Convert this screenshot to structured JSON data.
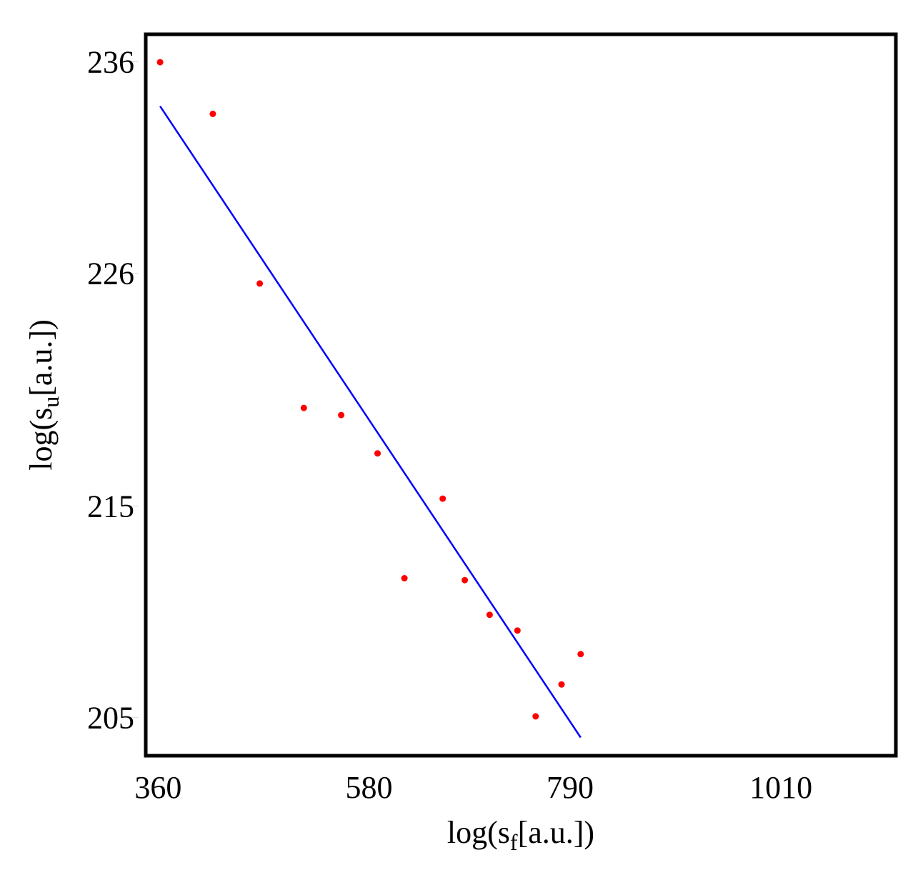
{
  "chart_data": {
    "type": "scatter",
    "xlabel": {
      "prefix": "log(s",
      "sub": "f",
      "suffix": "[a.u.])"
    },
    "ylabel": {
      "prefix": "log(s",
      "sub": "u",
      "suffix": "[a.u.])"
    },
    "xticks": [
      360,
      580,
      790,
      1010
    ],
    "yticks": [
      205,
      215,
      226,
      236
    ],
    "xlim": [
      347,
      1130
    ],
    "ylim": [
      203.2,
      237.3
    ],
    "grid": false,
    "series": [
      {
        "type": "scatter",
        "color": "#ff0000",
        "points": [
          {
            "x": 362,
            "y": 235.98
          },
          {
            "x": 417,
            "y": 233.54
          },
          {
            "x": 466,
            "y": 225.52
          },
          {
            "x": 512,
            "y": 219.64
          },
          {
            "x": 551,
            "y": 219.3
          },
          {
            "x": 589,
            "y": 217.49
          },
          {
            "x": 617,
            "y": 211.59
          },
          {
            "x": 657,
            "y": 215.35
          },
          {
            "x": 680,
            "y": 211.5
          },
          {
            "x": 706,
            "y": 209.86
          },
          {
            "x": 735,
            "y": 209.12
          },
          {
            "x": 754,
            "y": 205.06
          },
          {
            "x": 781,
            "y": 206.57
          },
          {
            "x": 801,
            "y": 208.0
          }
        ]
      },
      {
        "type": "line",
        "color": "#0000ff",
        "points": [
          {
            "x": 362,
            "y": 233.9
          },
          {
            "x": 801,
            "y": 204.06
          }
        ]
      }
    ]
  }
}
